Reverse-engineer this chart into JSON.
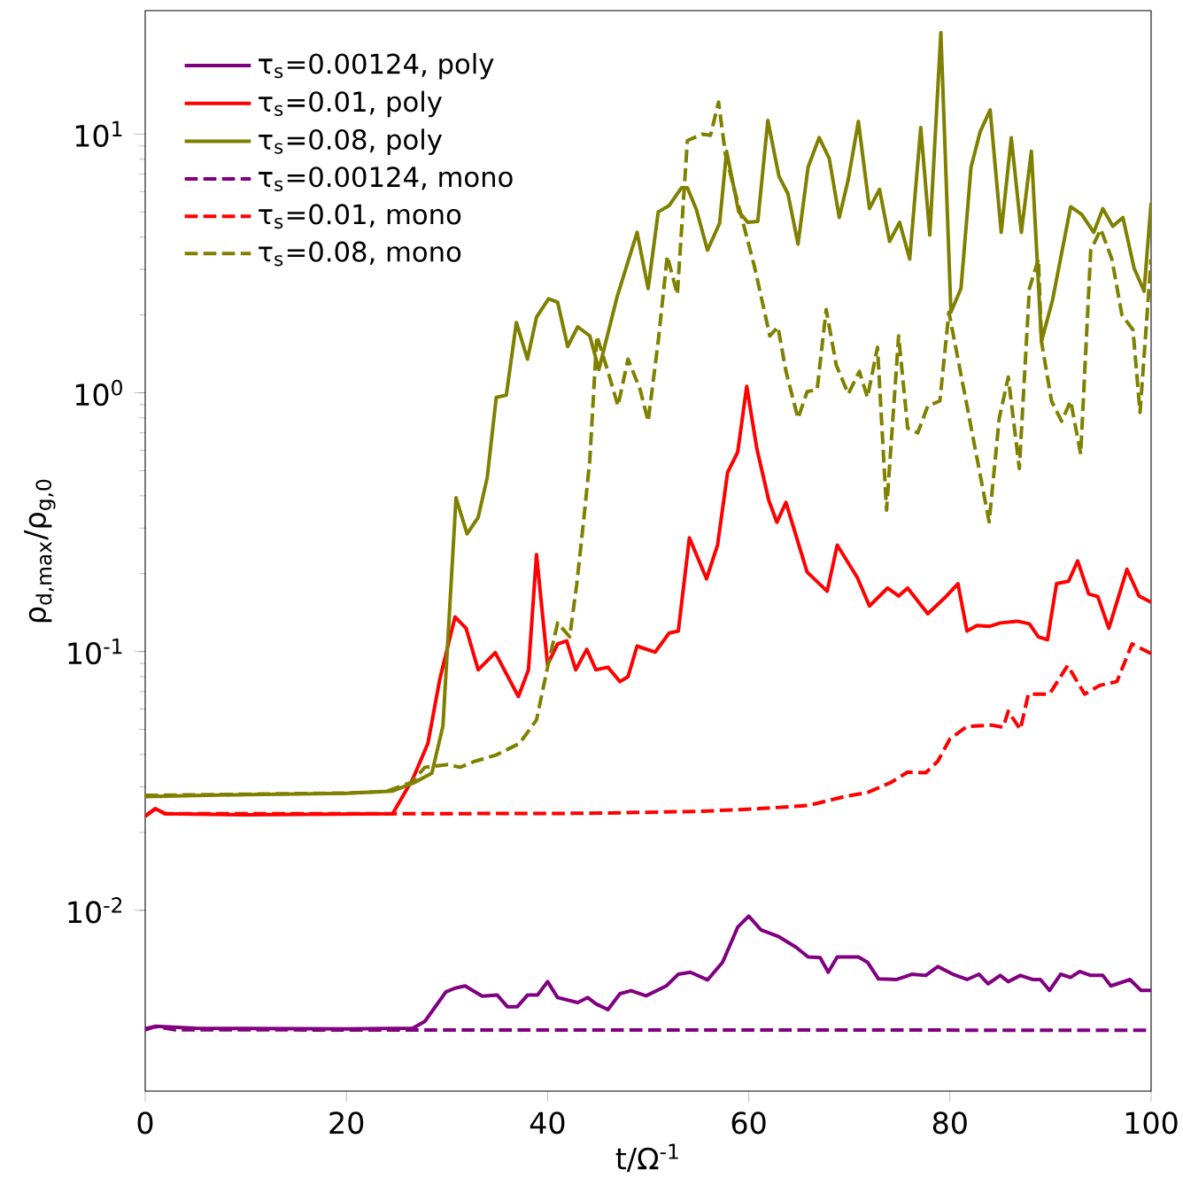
{
  "chart_data": {
    "type": "line",
    "xlabel": "t/Ω$^{-1}$",
    "ylabel": "ρ$_{d,max}$/ρ$_{g,0}$",
    "log": "y",
    "legend": "top left",
    "xlim": [
      0,
      100
    ],
    "xticks": [
      0,
      20,
      40,
      60,
      80,
      100
    ],
    "ylim": [
      0.002,
      30
    ],
    "yticks": [
      {
        "value": 0.01,
        "label": "10$^{-2}$"
      },
      {
        "value": 0.1,
        "label": "10$^{-1}$"
      },
      {
        "value": 1,
        "label": "10$^{0}$"
      },
      {
        "value": 10,
        "label": "10$^{1}$"
      }
    ],
    "series": [
      {
        "name": "τ$_{s}$=0.00124, poly",
        "color": "#800080",
        "line_style": "solid",
        "x": [
          0,
          1,
          5,
          10,
          20,
          26.6,
          27.8,
          29.9,
          30.8,
          31.8,
          33.5,
          35,
          36,
          37,
          38,
          39,
          40,
          41,
          43,
          44,
          44.8,
          46,
          47.2,
          48.3,
          49.8,
          51.8,
          53,
          54.2,
          55.9,
          57.4,
          58.9,
          60,
          61.2,
          63,
          64.7,
          65.9,
          67.1,
          67.9,
          68.8,
          70.9,
          71.8,
          72.9,
          74.7,
          76.2,
          77.6,
          78.8,
          80.3,
          81.7,
          82.9,
          83.8,
          85,
          85.8,
          87,
          88.2,
          89,
          89.9,
          91,
          92,
          92.9,
          94,
          95.2,
          96,
          97.9,
          99,
          100
        ],
        "values": [
          0.00349,
          0.00356,
          0.0035,
          0.00349,
          0.00348,
          0.0035,
          0.00372,
          0.00484,
          0.005,
          0.0051,
          0.00466,
          0.0047,
          0.00424,
          0.00424,
          0.0047,
          0.0047,
          0.0053,
          0.0046,
          0.0044,
          0.0046,
          0.00435,
          0.00413,
          0.00476,
          0.00489,
          0.00467,
          0.0051,
          0.00566,
          0.00576,
          0.00538,
          0.0063,
          0.0086,
          0.0095,
          0.00841,
          0.0079,
          0.0072,
          0.0066,
          0.00656,
          0.00576,
          0.0066,
          0.0066,
          0.0063,
          0.00543,
          0.0054,
          0.00566,
          0.0056,
          0.00606,
          0.00566,
          0.0054,
          0.00566,
          0.0052,
          0.0056,
          0.0053,
          0.0056,
          0.0054,
          0.0054,
          0.0049,
          0.00566,
          0.0055,
          0.0058,
          0.0056,
          0.0056,
          0.0051,
          0.0054,
          0.0049,
          0.0049
        ]
      },
      {
        "name": "τ$_{s}$=0.01, poly",
        "color": "#ff0000",
        "line_style": "solid",
        "x": [
          0,
          1,
          2,
          10,
          24.6,
          26.6,
          28.1,
          29.3,
          30.8,
          31.9,
          33.1,
          34.8,
          37.1,
          38.1,
          38.9,
          40,
          41,
          41.9,
          42.8,
          43.9,
          44.8,
          46,
          47.2,
          48,
          48.9,
          50.7,
          52.1,
          53,
          54.1,
          55.8,
          56.9,
          57.9,
          58.9,
          59.8,
          60.8,
          62,
          62.8,
          63.7,
          65.8,
          67.8,
          68.8,
          70.8,
          72,
          73.8,
          74.9,
          75.8,
          77.8,
          79.6,
          80.8,
          81.7,
          82.7,
          83.9,
          85,
          86.7,
          87.9,
          88.8,
          89.7,
          90.6,
          91.8,
          92.7,
          93.8,
          94.7,
          95.8,
          97.6,
          98.8,
          100
        ],
        "values": [
          0.0231,
          0.0247,
          0.0236,
          0.0234,
          0.0236,
          0.0322,
          0.0441,
          0.0786,
          0.136,
          0.123,
          0.085,
          0.099,
          0.067,
          0.085,
          0.237,
          0.089,
          0.107,
          0.11,
          0.085,
          0.102,
          0.085,
          0.087,
          0.0765,
          0.08,
          0.105,
          0.0995,
          0.118,
          0.12,
          0.275,
          0.191,
          0.258,
          0.493,
          0.59,
          1.06,
          0.61,
          0.383,
          0.316,
          0.377,
          0.203,
          0.171,
          0.258,
          0.193,
          0.15,
          0.176,
          0.164,
          0.176,
          0.14,
          0.163,
          0.183,
          0.12,
          0.126,
          0.125,
          0.129,
          0.131,
          0.128,
          0.114,
          0.111,
          0.183,
          0.187,
          0.224,
          0.167,
          0.163,
          0.123,
          0.208,
          0.164,
          0.155
        ]
      },
      {
        "name": "τ$_{s}$=0.08, poly",
        "color": "#808000",
        "line_style": "solid",
        "x": [
          0,
          10,
          20,
          24.6,
          26.7,
          28.5,
          29.6,
          30.9,
          32,
          33.1,
          34,
          34.9,
          35.9,
          36.9,
          38,
          38.9,
          40.1,
          41,
          42,
          43,
          44.2,
          45.1,
          46.9,
          48.9,
          50,
          51,
          52.1,
          53.3,
          53.9,
          54.8,
          55.9,
          57.1,
          57.8,
          59,
          59.9,
          60.9,
          61.9,
          63,
          63.9,
          64.9,
          65.9,
          67,
          68,
          69,
          69.9,
          70.9,
          72,
          73,
          74,
          75,
          76,
          77.1,
          78,
          79.1,
          80.1,
          81.1,
          82.1,
          83,
          84,
          85.1,
          86.1,
          87.1,
          88.1,
          89.1,
          90.2,
          92,
          93.1,
          94.3,
          95.2,
          96.2,
          97.2,
          98.3,
          99.3,
          100
        ],
        "values": [
          0.0275,
          0.028,
          0.0283,
          0.0289,
          0.0311,
          0.0339,
          0.0516,
          0.393,
          0.285,
          0.33,
          0.47,
          0.96,
          0.98,
          1.87,
          1.35,
          1.96,
          2.31,
          2.24,
          1.51,
          1.8,
          1.66,
          1.23,
          2.34,
          4.17,
          2.53,
          5.0,
          5.3,
          6.2,
          6.2,
          5.1,
          3.56,
          4.52,
          8.58,
          5.02,
          4.56,
          4.6,
          11.3,
          6.88,
          5.87,
          3.76,
          7.45,
          9.69,
          8.06,
          4.76,
          6.7,
          11.2,
          5.15,
          6.12,
          3.85,
          4.56,
          3.29,
          10.6,
          4.07,
          24.7,
          2.05,
          2.53,
          7.45,
          10.2,
          12.4,
          4.17,
          9.69,
          4.17,
          8.58,
          1.58,
          2.28,
          5.24,
          4.89,
          4.17,
          5.15,
          4.4,
          4.76,
          3.04,
          2.47,
          5.43
        ]
      },
      {
        "name": "τ$_{s}$=0.00124, mono",
        "color": "#800080",
        "line_style": "dashed",
        "x": [
          0,
          1,
          3,
          100
        ],
        "values": [
          0.00345,
          0.00355,
          0.00345,
          0.00344
        ]
      },
      {
        "name": "τ$_{s}$=0.01, mono",
        "color": "#ff0000",
        "line_style": "dashed",
        "x": [
          0,
          1,
          2,
          24,
          43.6,
          55,
          61,
          65.9,
          69.5,
          71.8,
          74.2,
          75.8,
          77.6,
          78.8,
          80,
          81.7,
          84.1,
          85.3,
          85.8,
          87,
          87.8,
          89.9,
          91.7,
          93.4,
          94.9,
          96.6,
          98.1,
          100
        ],
        "values": [
          0.0231,
          0.0247,
          0.0236,
          0.0236,
          0.0237,
          0.0241,
          0.0247,
          0.0254,
          0.0275,
          0.0285,
          0.0313,
          0.0342,
          0.034,
          0.0377,
          0.046,
          0.0513,
          0.052,
          0.051,
          0.0588,
          0.05,
          0.0685,
          0.0685,
          0.0883,
          0.0685,
          0.074,
          0.0765,
          0.107,
          0.0983
        ]
      },
      {
        "name": "τ$_{s}$=0.08, mono",
        "color": "#808000",
        "line_style": "dashed",
        "x": [
          0,
          10,
          20,
          24,
          26.5,
          27.8,
          30.1,
          31.3,
          32.8,
          34.8,
          37.2,
          38.9,
          40,
          41,
          42.2,
          42.9,
          43.6,
          44.2,
          44.9,
          46,
          47,
          48,
          49.2,
          50,
          51,
          51.9,
          52.9,
          53.9,
          55.4,
          56.2,
          57,
          57.7,
          60.6,
          62.1,
          62.9,
          63.7,
          64.9,
          65.8,
          66.8,
          67.7,
          68.7,
          69.9,
          71,
          71.8,
          72.8,
          73.7,
          74.9,
          75.8,
          76.8,
          77.8,
          79,
          79.9,
          81.7,
          83.9,
          84.9,
          85.8,
          86.9,
          87.9,
          88.8,
          89.1,
          90.1,
          91.1,
          92,
          93,
          94,
          95,
          96.1,
          97.1,
          98.2,
          98.9,
          100
        ],
        "values": [
          0.0278,
          0.0281,
          0.0284,
          0.0288,
          0.0313,
          0.0357,
          0.0366,
          0.0357,
          0.0377,
          0.0397,
          0.0441,
          0.0544,
          0.087,
          0.129,
          0.114,
          0.182,
          0.324,
          0.55,
          1.66,
          1.21,
          0.89,
          1.35,
          1.03,
          0.776,
          1.58,
          3.38,
          2.4,
          9.44,
          10.0,
          9.9,
          13.3,
          8.27,
          3.04,
          1.66,
          1.8,
          1.21,
          0.796,
          1.01,
          1.03,
          2.1,
          1.28,
          0.99,
          1.21,
          0.96,
          1.5,
          0.352,
          1.66,
          0.73,
          0.7,
          0.89,
          0.93,
          2.05,
          0.89,
          0.317,
          0.796,
          1.15,
          0.51,
          2.53,
          3.29,
          1.58,
          0.93,
          0.776,
          0.93,
          0.58,
          3.56,
          4.29,
          3.29,
          2.0,
          1.75,
          0.84,
          3.29
        ]
      }
    ]
  }
}
